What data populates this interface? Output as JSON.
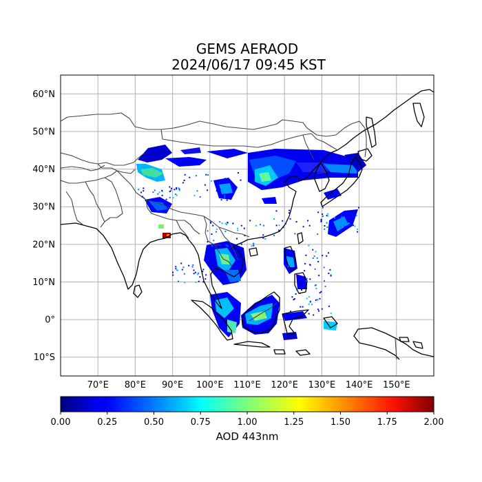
{
  "title": {
    "line1": "GEMS AERAOD",
    "line2": "2024/06/17 09:45 KST"
  },
  "map": {
    "lon_range": [
      60,
      160
    ],
    "lat_range": [
      -15,
      65
    ],
    "lat_ticks": [
      {
        "value": 60,
        "label": "60°N"
      },
      {
        "value": 50,
        "label": "50°N"
      },
      {
        "value": 40,
        "label": "40°N"
      },
      {
        "value": 30,
        "label": "30°N"
      },
      {
        "value": 20,
        "label": "20°N"
      },
      {
        "value": 10,
        "label": "10°N"
      },
      {
        "value": 0,
        "label": "0°"
      },
      {
        "value": -10,
        "label": "10°S"
      }
    ],
    "lon_ticks": [
      {
        "value": 70,
        "label": "70°E"
      },
      {
        "value": 80,
        "label": "80°E"
      },
      {
        "value": 90,
        "label": "90°E"
      },
      {
        "value": 100,
        "label": "100°E"
      },
      {
        "value": 110,
        "label": "110°E"
      },
      {
        "value": 120,
        "label": "120°E"
      },
      {
        "value": 130,
        "label": "130°E"
      },
      {
        "value": 140,
        "label": "140°E"
      },
      {
        "value": 150,
        "label": "150°E"
      }
    ],
    "grid": true
  },
  "colorbar": {
    "label": "AOD 443nm",
    "colormap": "jet",
    "range": [
      0,
      2
    ],
    "ticks": [
      {
        "value": 0.0,
        "label": "0.00"
      },
      {
        "value": 0.25,
        "label": "0.25"
      },
      {
        "value": 0.5,
        "label": "0.50"
      },
      {
        "value": 0.75,
        "label": "0.75"
      },
      {
        "value": 1.0,
        "label": "1.00"
      },
      {
        "value": 1.25,
        "label": "1.25"
      },
      {
        "value": 1.5,
        "label": "1.50"
      },
      {
        "value": 1.75,
        "label": "1.75"
      },
      {
        "value": 2.0,
        "label": "2.00"
      }
    ]
  }
}
